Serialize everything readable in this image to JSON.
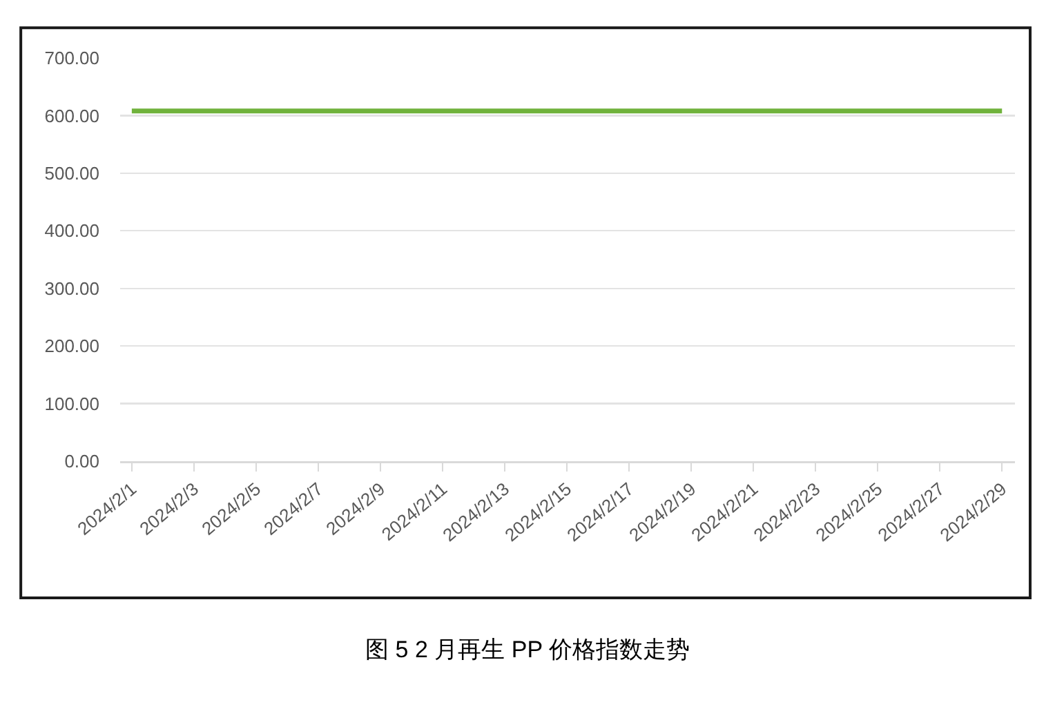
{
  "chart_data": {
    "type": "line",
    "title": "图 5 2 月再生 PP 价格指数走势",
    "x": [
      "2024-02-01",
      "2024-02-02",
      "2024-02-03",
      "2024-02-04",
      "2024-02-05",
      "2024-02-06",
      "2024-02-07",
      "2024-02-08",
      "2024-02-09",
      "2024-02-10",
      "2024-02-11",
      "2024-02-12",
      "2024-02-13",
      "2024-02-14",
      "2024-02-15",
      "2024-02-16",
      "2024-02-17",
      "2024-02-18",
      "2024-02-19",
      "2024-02-20",
      "2024-02-21",
      "2024-02-22",
      "2024-02-23",
      "2024-02-24",
      "2024-02-25",
      "2024-02-26",
      "2024-02-27",
      "2024-02-28",
      "2024-02-29"
    ],
    "series": [
      {
        "color": "#70b23c",
        "values": [
          608,
          608,
          608,
          608,
          608,
          608,
          608,
          608,
          608,
          608,
          608,
          608,
          608,
          608,
          608,
          608,
          608,
          608,
          608,
          608,
          608,
          608,
          608,
          608,
          608,
          608,
          608,
          608,
          608
        ]
      }
    ],
    "xlim": [
      "2024-01-31T15:00",
      "2024-02-29T10:00"
    ],
    "xticks": [
      {
        "value": "2024-02-01",
        "label": "2024/2/1"
      },
      {
        "value": "2024-02-03",
        "label": "2024/2/3"
      },
      {
        "value": "2024-02-05",
        "label": "2024/2/5"
      },
      {
        "value": "2024-02-07",
        "label": "2024/2/7"
      },
      {
        "value": "2024-02-09",
        "label": "2024/2/9"
      },
      {
        "value": "2024-02-11",
        "label": "2024/2/11"
      },
      {
        "value": "2024-02-13",
        "label": "2024/2/13"
      },
      {
        "value": "2024-02-15",
        "label": "2024/2/15"
      },
      {
        "value": "2024-02-17",
        "label": "2024/2/17"
      },
      {
        "value": "2024-02-19",
        "label": "2024/2/19"
      },
      {
        "value": "2024-02-21",
        "label": "2024/2/21"
      },
      {
        "value": "2024-02-23",
        "label": "2024/2/23"
      },
      {
        "value": "2024-02-25",
        "label": "2024/2/25"
      },
      {
        "value": "2024-02-27",
        "label": "2024/2/27"
      },
      {
        "value": "2024-02-29",
        "label": "2024/2/29"
      }
    ],
    "ylim": [
      0,
      700
    ],
    "yticks": [
      {
        "value": 0,
        "label": "0.00"
      },
      {
        "value": 100,
        "label": "100.00"
      },
      {
        "value": 200,
        "label": "200.00"
      },
      {
        "value": 300,
        "label": "300.00"
      },
      {
        "value": 400,
        "label": "400.00"
      },
      {
        "value": 500,
        "label": "500.00"
      },
      {
        "value": 600,
        "label": "600.00"
      },
      {
        "value": 700,
        "label": "700.00"
      }
    ],
    "grid": "y"
  }
}
